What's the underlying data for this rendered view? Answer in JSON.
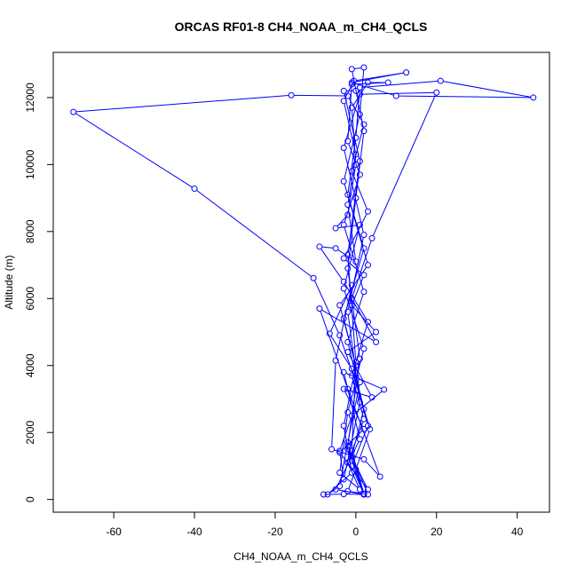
{
  "chart_data": {
    "type": "line",
    "title": "ORCAS RF01-8 CH4_NOAA_m_CH4_QCLS",
    "xlabel": "CH4_NOAA_m_CH4_QCLS",
    "ylabel": "Altitude (m)",
    "xlim": [
      -75,
      48
    ],
    "ylim": [
      -380,
      13350
    ],
    "xticks": [
      -60,
      -40,
      -20,
      0,
      20,
      40
    ],
    "yticks": [
      0,
      2000,
      4000,
      6000,
      8000,
      10000,
      12000
    ],
    "grid": false,
    "legend": "none",
    "series": [
      {
        "color": "#0000ff",
        "marker": "open-circle",
        "points": [
          [
            -8,
            150
          ],
          [
            -3,
            160
          ],
          [
            2,
            150
          ],
          [
            -2,
            1500
          ],
          [
            3,
            300
          ],
          [
            -4,
            1400
          ],
          [
            2,
            2100
          ],
          [
            -3,
            3300
          ],
          [
            4,
            3050
          ],
          [
            -2,
            4400
          ],
          [
            5,
            5000
          ],
          [
            -1,
            5800
          ],
          [
            2,
            6700
          ],
          [
            -3,
            7200
          ],
          [
            3,
            8600
          ],
          [
            -1,
            9800
          ],
          [
            2,
            11200
          ],
          [
            -2,
            12050
          ],
          [
            -16,
            12070
          ],
          [
            -70,
            11570
          ],
          [
            -40,
            9280
          ],
          [
            -10.5,
            6610
          ],
          [
            -4,
            4900
          ],
          [
            0,
            3500
          ],
          [
            3,
            2200
          ],
          [
            -1,
            1000
          ],
          [
            2,
            150
          ],
          [
            -5,
            300
          ],
          [
            1,
            1800
          ],
          [
            -3,
            3800
          ],
          [
            7,
            3280
          ],
          [
            -1,
            2500
          ],
          [
            -4,
            1450
          ],
          [
            -3,
            600
          ],
          [
            1,
            2900
          ],
          [
            -2,
            5600
          ],
          [
            2,
            7900
          ],
          [
            -3,
            10500
          ],
          [
            1,
            12100
          ],
          [
            20,
            12150
          ],
          [
            4,
            7800
          ],
          [
            -1,
            6000
          ],
          [
            5,
            4700
          ],
          [
            -9,
            5700
          ],
          [
            -2,
            3300
          ],
          [
            6,
            680
          ],
          [
            2,
            1200
          ],
          [
            -6,
            1500
          ],
          [
            -5,
            4150
          ],
          [
            -1,
            6400
          ],
          [
            -6.5,
            4950
          ],
          [
            -1,
            3900
          ],
          [
            3.5,
            2100
          ],
          [
            0,
            900
          ],
          [
            -2,
            250
          ],
          [
            3,
            150
          ],
          [
            -2,
            1600
          ],
          [
            1,
            4200
          ],
          [
            -2,
            6900
          ],
          [
            0,
            9000
          ],
          [
            2,
            11000
          ],
          [
            -1,
            12850
          ],
          [
            2,
            12900
          ],
          [
            1,
            11500
          ],
          [
            -3,
            9500
          ],
          [
            3,
            7000
          ],
          [
            -4,
            5800
          ],
          [
            0,
            4000
          ],
          [
            -3,
            2200
          ],
          [
            -1,
            800
          ],
          [
            -7,
            150
          ],
          [
            -4,
            400
          ],
          [
            -2,
            1700
          ],
          [
            1,
            3500
          ],
          [
            -3,
            5400
          ],
          [
            2,
            7500
          ],
          [
            -2,
            9100
          ],
          [
            0,
            10800
          ],
          [
            1,
            12300
          ],
          [
            21,
            12500
          ],
          [
            44,
            12000
          ],
          [
            10,
            12050
          ],
          [
            -1,
            12450
          ],
          [
            12.5,
            12750
          ],
          [
            -0.5,
            12500
          ],
          [
            -3,
            11900
          ],
          [
            0,
            10300
          ],
          [
            -2,
            8800
          ],
          [
            0,
            7100
          ],
          [
            -5,
            7500
          ],
          [
            -9,
            7550
          ],
          [
            -3,
            6500
          ],
          [
            3,
            5300
          ],
          [
            -1,
            3700
          ],
          [
            2,
            2400
          ],
          [
            -2,
            1100
          ],
          [
            1,
            300
          ],
          [
            -4,
            800
          ],
          [
            -2,
            2600
          ],
          [
            2,
            4500
          ],
          [
            -3,
            6300
          ],
          [
            1,
            8200
          ],
          [
            -5,
            8100
          ],
          [
            -2,
            8500
          ],
          [
            0,
            10000
          ],
          [
            -1,
            11700
          ],
          [
            3,
            12450
          ],
          [
            8,
            12450
          ],
          [
            -1,
            12400
          ],
          [
            -2,
            10700
          ],
          [
            1,
            9700
          ],
          [
            -3,
            8200
          ],
          [
            2,
            6200
          ],
          [
            -2,
            4700
          ],
          [
            2,
            2700
          ],
          [
            -1,
            1300
          ],
          [
            2,
            170
          ],
          [
            -1,
            1450
          ],
          [
            0,
            4100
          ],
          [
            -2,
            7300
          ],
          [
            1,
            10100
          ],
          [
            -3,
            12200
          ],
          [
            0,
            12200
          ]
        ]
      }
    ]
  }
}
